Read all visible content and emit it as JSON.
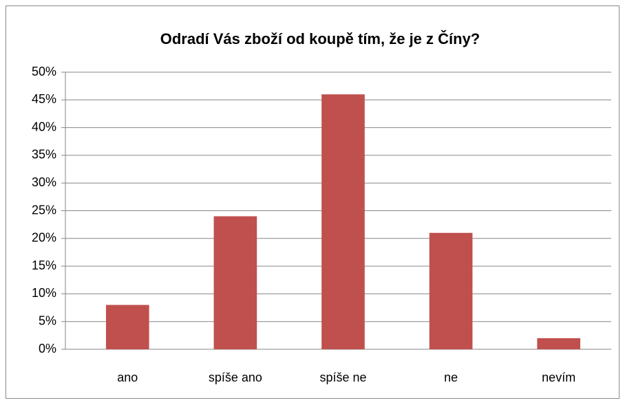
{
  "chart_data": {
    "type": "bar",
    "title": "Odradí Vás zboží od koupě tím, že je z Číny?",
    "categories": [
      "ano",
      "spíše ano",
      "spíše ne",
      "ne",
      "nevím"
    ],
    "values": [
      8,
      24,
      46,
      21,
      2
    ],
    "color": "#c0504d",
    "ylim": [
      0,
      50
    ],
    "yticks": [
      {
        "value": 0,
        "label": "0%"
      },
      {
        "value": 5,
        "label": "5%"
      },
      {
        "value": 10,
        "label": "10%"
      },
      {
        "value": 15,
        "label": "15%"
      },
      {
        "value": 20,
        "label": "20%"
      },
      {
        "value": 25,
        "label": "25%"
      },
      {
        "value": 30,
        "label": "30%"
      },
      {
        "value": 35,
        "label": "35%"
      },
      {
        "value": 40,
        "label": "40%"
      },
      {
        "value": 45,
        "label": "45%"
      },
      {
        "value": 50,
        "label": "50%"
      }
    ],
    "grid": true
  }
}
